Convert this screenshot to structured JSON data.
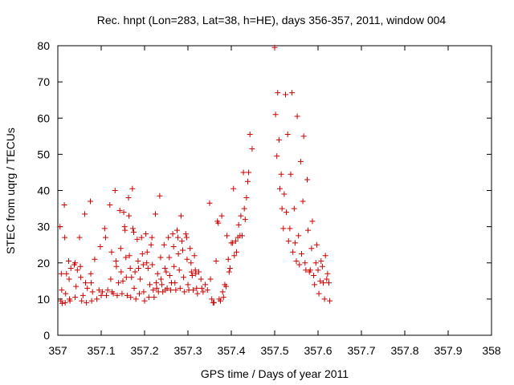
{
  "chart_data": {
    "type": "scatter",
    "title": "Rec. hnpt (Lon=283, Lat=38, h=HE), days 356-357, 2011, window 004",
    "xlabel": "GPS time / Days of year 2011",
    "ylabel": "STEC from uqrg / TECUs",
    "xlim": [
      357,
      358
    ],
    "ylim": [
      0,
      80
    ],
    "x_ticks": [
      "357",
      "357.1",
      "357.2",
      "357.3",
      "357.4",
      "357.5",
      "357.6",
      "357.7",
      "357.8",
      "357.9",
      "358"
    ],
    "y_ticks": [
      "0",
      "10",
      "20",
      "30",
      "40",
      "50",
      "60",
      "70",
      "80"
    ],
    "grid": false,
    "legend": "none",
    "marker": "plus",
    "color": "#cc0000",
    "points": [
      [
        357.005,
        30.0
      ],
      [
        357.007,
        9.5
      ],
      [
        357.008,
        17.0
      ],
      [
        357.009,
        12.5
      ],
      [
        357.01,
        8.8
      ],
      [
        357.015,
        36.0
      ],
      [
        357.016,
        27.0
      ],
      [
        357.017,
        9.0
      ],
      [
        357.018,
        11.5
      ],
      [
        357.02,
        17.0
      ],
      [
        357.025,
        20.5
      ],
      [
        357.026,
        15.5
      ],
      [
        357.027,
        10.0
      ],
      [
        357.028,
        9.5
      ],
      [
        357.03,
        18.5
      ],
      [
        357.038,
        19.5
      ],
      [
        357.04,
        20.0
      ],
      [
        357.04,
        10.5
      ],
      [
        357.042,
        13.5
      ],
      [
        357.045,
        18.0
      ],
      [
        357.05,
        27.0
      ],
      [
        357.052,
        19.0
      ],
      [
        357.053,
        16.0
      ],
      [
        357.055,
        9.5
      ],
      [
        357.058,
        11.0
      ],
      [
        357.062,
        33.5
      ],
      [
        357.064,
        14.5
      ],
      [
        357.066,
        9.0
      ],
      [
        357.068,
        13.0
      ],
      [
        357.075,
        37.0
      ],
      [
        357.076,
        17.0
      ],
      [
        357.077,
        14.5
      ],
      [
        357.078,
        9.5
      ],
      [
        357.08,
        12.0
      ],
      [
        357.085,
        21.0
      ],
      [
        357.09,
        10.0
      ],
      [
        357.095,
        12.5
      ],
      [
        357.098,
        24.5
      ],
      [
        357.1,
        11.0
      ],
      [
        357.103,
        12.0
      ],
      [
        357.108,
        29.5
      ],
      [
        357.11,
        27.0
      ],
      [
        357.112,
        11.0
      ],
      [
        357.115,
        12.5
      ],
      [
        357.12,
        36.0
      ],
      [
        357.122,
        15.5
      ],
      [
        357.124,
        23.0
      ],
      [
        357.125,
        12.0
      ],
      [
        357.128,
        11.5
      ],
      [
        357.132,
        40.0
      ],
      [
        357.134,
        20.5
      ],
      [
        357.135,
        19.0
      ],
      [
        357.137,
        11.0
      ],
      [
        357.14,
        14.5
      ],
      [
        357.143,
        34.5
      ],
      [
        357.145,
        24.0
      ],
      [
        357.146,
        17.5
      ],
      [
        357.148,
        11.5
      ],
      [
        357.15,
        15.0
      ],
      [
        357.152,
        34.0
      ],
      [
        357.154,
        30.0
      ],
      [
        357.155,
        29.0
      ],
      [
        357.157,
        21.5
      ],
      [
        357.158,
        16.0
      ],
      [
        357.16,
        11.0
      ],
      [
        357.163,
        38.0
      ],
      [
        357.164,
        33.0
      ],
      [
        357.165,
        22.0
      ],
      [
        357.167,
        18.5
      ],
      [
        357.168,
        10.5
      ],
      [
        357.17,
        16.0
      ],
      [
        357.172,
        40.5
      ],
      [
        357.173,
        29.5
      ],
      [
        357.175,
        28.5
      ],
      [
        357.176,
        13.0
      ],
      [
        357.178,
        17.5
      ],
      [
        357.18,
        10.0
      ],
      [
        357.183,
        26.5
      ],
      [
        357.185,
        20.5
      ],
      [
        357.186,
        18.5
      ],
      [
        357.188,
        11.5
      ],
      [
        357.19,
        15.5
      ],
      [
        357.193,
        27.0
      ],
      [
        357.195,
        22.5
      ],
      [
        357.197,
        19.5
      ],
      [
        357.198,
        12.0
      ],
      [
        357.2,
        9.5
      ],
      [
        357.203,
        28.0
      ],
      [
        357.205,
        20.0
      ],
      [
        357.206,
        23.0
      ],
      [
        357.208,
        18.5
      ],
      [
        357.21,
        10.5
      ],
      [
        357.212,
        14.0
      ],
      [
        357.215,
        25.0
      ],
      [
        357.217,
        27.0
      ],
      [
        357.218,
        19.5
      ],
      [
        357.22,
        12.5
      ],
      [
        357.222,
        10.5
      ],
      [
        357.225,
        33.5
      ],
      [
        357.227,
        14.5
      ],
      [
        357.228,
        13.0
      ],
      [
        357.23,
        17.0
      ],
      [
        357.232,
        12.0
      ],
      [
        357.235,
        38.5
      ],
      [
        357.237,
        21.5
      ],
      [
        357.238,
        15.5
      ],
      [
        357.24,
        14.0
      ],
      [
        357.242,
        12.0
      ],
      [
        357.245,
        25.0
      ],
      [
        357.247,
        18.5
      ],
      [
        357.248,
        12.5
      ],
      [
        357.25,
        17.5
      ],
      [
        357.252,
        13.0
      ],
      [
        357.255,
        27.0
      ],
      [
        357.257,
        21.5
      ],
      [
        357.258,
        16.5
      ],
      [
        357.26,
        12.5
      ],
      [
        357.262,
        14.5
      ],
      [
        357.265,
        28.0
      ],
      [
        357.267,
        24.5
      ],
      [
        357.268,
        19.0
      ],
      [
        357.27,
        14.5
      ],
      [
        357.272,
        12.5
      ],
      [
        357.275,
        29.0
      ],
      [
        357.277,
        27.0
      ],
      [
        357.278,
        22.5
      ],
      [
        357.28,
        18.0
      ],
      [
        357.282,
        13.0
      ],
      [
        357.284,
        33.0
      ],
      [
        357.286,
        26.0
      ],
      [
        357.288,
        23.5
      ],
      [
        357.29,
        16.0
      ],
      [
        357.292,
        12.0
      ],
      [
        357.295,
        28.0
      ],
      [
        357.297,
        27.0
      ],
      [
        357.298,
        21.0
      ],
      [
        357.3,
        14.0
      ],
      [
        357.302,
        12.5
      ],
      [
        357.305,
        24.0
      ],
      [
        357.307,
        20.0
      ],
      [
        357.308,
        17.5
      ],
      [
        357.31,
        16.5
      ],
      [
        357.312,
        12.5
      ],
      [
        357.315,
        22.0
      ],
      [
        357.317,
        18.0
      ],
      [
        357.318,
        17.0
      ],
      [
        357.32,
        13.0
      ],
      [
        357.322,
        11.5
      ],
      [
        357.325,
        17.5
      ],
      [
        357.33,
        15.5
      ],
      [
        357.332,
        13.0
      ],
      [
        357.335,
        12.0
      ],
      [
        357.34,
        14.0
      ],
      [
        357.345,
        12.5
      ],
      [
        357.35,
        36.5
      ],
      [
        357.352,
        15.5
      ],
      [
        357.355,
        10.0
      ],
      [
        357.358,
        9.0
      ],
      [
        357.36,
        9.0
      ],
      [
        357.365,
        20.5
      ],
      [
        357.368,
        31.5
      ],
      [
        357.37,
        31.0
      ],
      [
        357.372,
        10.0
      ],
      [
        357.375,
        9.5
      ],
      [
        357.378,
        33.0
      ],
      [
        357.38,
        12.0
      ],
      [
        357.382,
        10.5
      ],
      [
        357.385,
        14.0
      ],
      [
        357.388,
        13.5
      ],
      [
        357.39,
        27.5
      ],
      [
        357.393,
        21.0
      ],
      [
        357.395,
        17.5
      ],
      [
        357.397,
        18.5
      ],
      [
        357.4,
        25.5
      ],
      [
        357.403,
        25.5
      ],
      [
        357.405,
        40.5
      ],
      [
        357.407,
        22.0
      ],
      [
        357.41,
        26.0
      ],
      [
        357.412,
        23.0
      ],
      [
        357.415,
        27.0
      ],
      [
        357.417,
        30.5
      ],
      [
        357.42,
        27.5
      ],
      [
        357.422,
        33.0
      ],
      [
        357.425,
        27.5
      ],
      [
        357.428,
        45.0
      ],
      [
        357.43,
        35.0
      ],
      [
        357.432,
        32.0
      ],
      [
        357.435,
        38.0
      ],
      [
        357.438,
        42.5
      ],
      [
        357.44,
        45.0
      ],
      [
        357.443,
        55.5
      ],
      [
        357.448,
        51.5
      ],
      [
        357.5,
        79.5
      ],
      [
        357.502,
        61.0
      ],
      [
        357.505,
        49.5
      ],
      [
        357.507,
        67.0
      ],
      [
        357.51,
        54.0
      ],
      [
        357.512,
        40.5
      ],
      [
        357.515,
        44.5
      ],
      [
        357.517,
        35.0
      ],
      [
        357.52,
        29.5
      ],
      [
        357.522,
        39.0
      ],
      [
        357.525,
        66.5
      ],
      [
        357.527,
        34.0
      ],
      [
        357.53,
        55.5
      ],
      [
        357.532,
        26.0
      ],
      [
        357.535,
        29.5
      ],
      [
        357.537,
        44.5
      ],
      [
        357.54,
        67.0
      ],
      [
        357.542,
        23.0
      ],
      [
        357.545,
        35.0
      ],
      [
        357.547,
        25.5
      ],
      [
        357.55,
        20.5
      ],
      [
        357.552,
        60.5
      ],
      [
        357.555,
        27.5
      ],
      [
        357.557,
        19.5
      ],
      [
        357.56,
        48.0
      ],
      [
        357.562,
        22.5
      ],
      [
        357.565,
        37.0
      ],
      [
        357.567,
        55.0
      ],
      [
        357.57,
        20.0
      ],
      [
        357.572,
        18.0
      ],
      [
        357.575,
        43.0
      ],
      [
        357.577,
        29.0
      ],
      [
        357.58,
        17.5
      ],
      [
        357.582,
        18.0
      ],
      [
        357.585,
        24.0
      ],
      [
        357.587,
        31.5
      ],
      [
        357.59,
        16.5
      ],
      [
        357.592,
        14.0
      ],
      [
        357.595,
        20.0
      ],
      [
        357.597,
        25.0
      ],
      [
        357.6,
        18.0
      ],
      [
        357.602,
        11.5
      ],
      [
        357.605,
        15.0
      ],
      [
        357.607,
        20.5
      ],
      [
        357.61,
        19.0
      ],
      [
        357.612,
        14.5
      ],
      [
        357.615,
        10.0
      ],
      [
        357.617,
        22.0
      ],
      [
        357.62,
        15.5
      ],
      [
        357.622,
        17.0
      ],
      [
        357.625,
        14.5
      ],
      [
        357.627,
        9.5
      ]
    ]
  }
}
